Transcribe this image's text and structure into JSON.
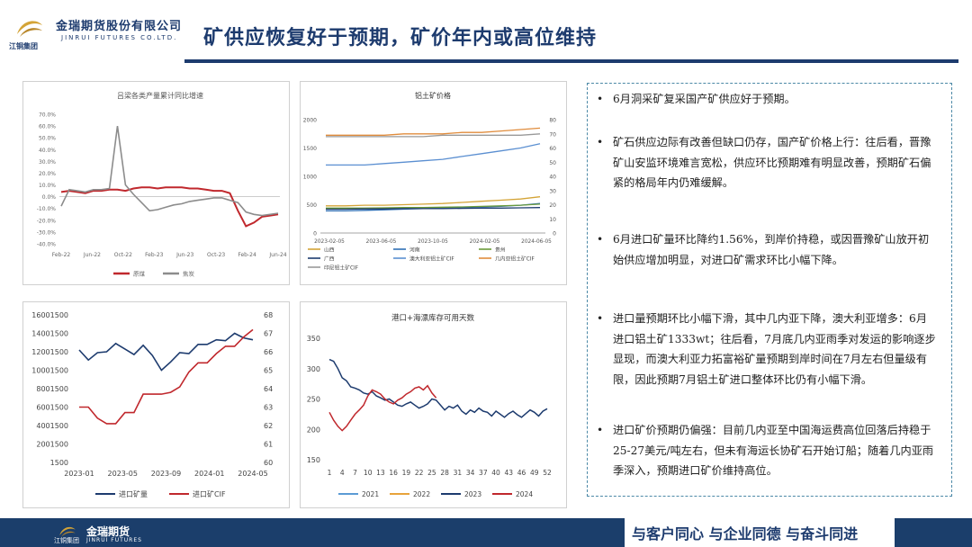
{
  "header": {
    "logo_cn": "金瑞期货股份有限公司",
    "logo_en": "JINRUI FUTURES CO.LTD.",
    "logo_group": "江铜集团",
    "title": "矿供应恢复好于预期，矿价年内或高位维持"
  },
  "colors": {
    "navy": "#1d3b6e",
    "red": "#c0282d",
    "gray": "#8c8c8c",
    "gold": "#d4a437"
  },
  "bullets": [
    "6月洞采矿复采国产矿供应好于预期。",
    "矿石供应边际有改善但缺口仍存，国产矿价格上行：往后看，晋豫矿山安监环境难言宽松，供应环比预期难有明显改善，预期矿石偏紧的格局年内仍难缓解。",
    "6月进口矿量环比降约1.56%，到岸价持稳，或因晋豫矿山放开初始供应增加明显，对进口矿需求环比小幅下降。",
    "进口量预期环比小幅下滑，其中几内亚下降，澳大利亚增多：6月进口铝土矿1333wt；往后看，7月底几内亚雨季对发运的影响逐步显现，而澳大利亚力拓富裕矿量预期到岸时间在7月左右但量级有限，因此预期7月铝土矿进口整体环比仍有小幅下滑。",
    "进口矿价预期仍偏强：目前几内亚至中国海运费高位回落后持稳于25-27美元/吨左右，但未有海运长协矿石开始订船；随着几内亚雨季深入，预期进口矿价维持高位。"
  ],
  "footer": {
    "brand_cn": "金瑞期货",
    "brand_en": "JINRUI FUTURES",
    "group": "江铜集团",
    "slogan": "与客户同心 与企业同德 与奋斗同进"
  },
  "chart_data": [
    {
      "type": "line",
      "title": "吕梁各类产量累计同比增速",
      "x_ticks": [
        "Feb-22",
        "Jun-22",
        "Oct-22",
        "Feb-23",
        "Jun-23",
        "Oct-23",
        "Feb-24",
        "Jun-24"
      ],
      "y_ticks": [
        "70.0%",
        "60.0%",
        "50.0%",
        "40.0%",
        "30.0%",
        "20.0%",
        "10.0%",
        "0.0%",
        "-10.0%",
        "-20.0%",
        "-30.0%",
        "-40.0%"
      ],
      "ylim": [
        -40,
        70
      ],
      "series": [
        {
          "name": "原煤",
          "color": "#c0282d",
          "values": [
            4,
            5,
            4,
            3,
            5,
            5,
            6,
            6,
            5,
            7,
            8,
            8,
            7,
            8,
            8,
            8,
            7,
            7,
            6,
            5,
            5,
            3,
            -12,
            -25,
            -22,
            -17,
            -16,
            -15
          ]
        },
        {
          "name": "焦炭",
          "color": "#8c8c8c",
          "values": [
            -8,
            6,
            5,
            4,
            6,
            6,
            7,
            60,
            10,
            2,
            -5,
            -12,
            -11,
            -9,
            -7,
            -6,
            -4,
            -3,
            -2,
            -1,
            -1,
            -3,
            -5,
            -13,
            -15,
            -16,
            -15,
            -14
          ]
        }
      ]
    },
    {
      "type": "line",
      "title": "铝土矿价格",
      "x_ticks": [
        "2023-02-05",
        "2023-06-05",
        "2023-10-05",
        "2024-02-05",
        "2024-06-05"
      ],
      "y_left_ticks": [
        "0",
        "500",
        "1000",
        "1500",
        "2000"
      ],
      "y_right_ticks": [
        "0",
        "10",
        "20",
        "30",
        "40",
        "50",
        "60",
        "70",
        "80"
      ],
      "ylim": [
        0,
        2000
      ],
      "y2lim": [
        0,
        80
      ],
      "legend": [
        "山西",
        "河南",
        "贵州",
        "广西",
        "澳大利亚铝土矿CIF",
        "几内亚铝土矿CIF",
        "印尼铝土矿CIF"
      ],
      "series": [
        {
          "name": "山西",
          "color": "#d4a437",
          "values": [
            480,
            480,
            490,
            490,
            500,
            510,
            520,
            540,
            560,
            580,
            600,
            640
          ]
        },
        {
          "name": "河南",
          "color": "#2f6fb5",
          "values": [
            390,
            390,
            400,
            410,
            420,
            430,
            440,
            450,
            460,
            470,
            490,
            520
          ]
        },
        {
          "name": "贵州",
          "color": "#6a9a3a",
          "values": [
            440,
            440,
            440,
            445,
            450,
            450,
            455,
            460,
            470,
            480,
            490,
            510
          ]
        },
        {
          "name": "广西",
          "color": "#1d3b6e",
          "values": [
            420,
            420,
            425,
            425,
            430,
            430,
            430,
            435,
            440,
            440,
            445,
            450
          ]
        },
        {
          "name": "澳大利亚铝土矿CIF",
          "color": "#5b8fd1",
          "values": [
            48,
            48,
            48,
            49,
            50,
            51,
            52,
            54,
            56,
            58,
            60,
            63
          ]
        },
        {
          "name": "几内亚铝土矿CIF",
          "color": "#e08c3c",
          "values": [
            69,
            69,
            69,
            69,
            70,
            70,
            70,
            71,
            71,
            72,
            73,
            74
          ]
        },
        {
          "name": "印尼铝土矿CIF",
          "color": "#999999",
          "values": [
            68,
            68,
            68,
            68,
            68,
            68,
            69,
            69,
            69,
            69,
            69,
            70
          ]
        }
      ]
    },
    {
      "type": "line",
      "title": "",
      "x_ticks": [
        "2023-01",
        "2023-05",
        "2023-09",
        "2024-01",
        "2024-05"
      ],
      "y_left_ticks": [
        "1500",
        "2001500",
        "4001500",
        "6001500",
        "8001500",
        "10001500",
        "12001500",
        "14001500",
        "16001500"
      ],
      "y_right_ticks": [
        "60",
        "61",
        "62",
        "63",
        "64",
        "65",
        "66",
        "67",
        "68"
      ],
      "ylim": [
        1500,
        16001500
      ],
      "y2lim": [
        60,
        68
      ],
      "legend": [
        "进口矿量",
        "进口矿CIF"
      ],
      "series": [
        {
          "name": "进口矿量",
          "color": "#1d3b6e",
          "values": [
            12200000,
            11100000,
            11900000,
            12000000,
            12900000,
            12300000,
            11700000,
            12700000,
            11600000,
            10000000,
            10900000,
            11900000,
            11800000,
            12800000,
            12800000,
            13300000,
            13200000,
            14000000,
            13500000,
            13300000
          ]
        },
        {
          "name": "进口矿CIF",
          "color": "#c0282d",
          "values": [
            63,
            63,
            62.4,
            62.1,
            62.1,
            62.7,
            62.7,
            63.7,
            63.7,
            63.7,
            63.8,
            64.1,
            64.9,
            65.4,
            65.4,
            65.9,
            66.3,
            66.3,
            66.8,
            67.2
          ]
        }
      ]
    },
    {
      "type": "line",
      "title": "港口+海漂库存可用天数",
      "x_ticks": [
        "1",
        "4",
        "7",
        "10",
        "13",
        "16",
        "19",
        "22",
        "25",
        "28",
        "31",
        "34",
        "37",
        "40",
        "43",
        "46",
        "49",
        "52"
      ],
      "y_ticks": [
        "150",
        "200",
        "250",
        "300",
        "350"
      ],
      "ylim": [
        150,
        350
      ],
      "legend": [
        "2021",
        "2022",
        "2023",
        "2024"
      ],
      "series": [
        {
          "name": "2021",
          "color": "#5b9bd5",
          "values": []
        },
        {
          "name": "2022",
          "color": "#e8a33b",
          "values": []
        },
        {
          "name": "2023",
          "color": "#1d3b6e",
          "values": [
            315,
            312,
            300,
            285,
            280,
            270,
            268,
            265,
            260,
            258,
            262,
            255,
            252,
            248,
            250,
            245,
            240,
            238,
            242,
            245,
            240,
            235,
            238,
            242,
            250,
            248,
            240,
            232,
            238,
            235,
            240,
            230,
            225,
            232,
            228,
            235,
            230,
            228,
            222,
            230,
            225,
            220,
            226,
            230,
            224,
            220,
            226,
            232,
            228,
            222,
            230,
            234
          ]
        },
        {
          "name": "2024",
          "color": "#c0282d",
          "values": [
            228,
            215,
            205,
            198,
            205,
            215,
            225,
            232,
            240,
            255,
            265,
            262,
            258,
            250,
            245,
            242,
            248,
            252,
            258,
            262,
            268,
            270,
            265,
            272,
            260,
            252
          ]
        }
      ]
    }
  ]
}
